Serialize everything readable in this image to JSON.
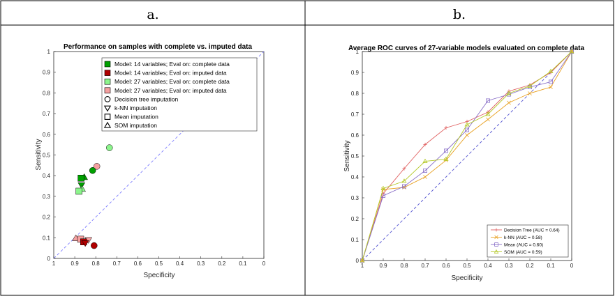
{
  "panels": [
    {
      "letter": "a."
    },
    {
      "letter": "b."
    }
  ],
  "chart_data": [
    {
      "type": "scatter",
      "title": "Performance on samples with complete vs. imputed data",
      "xlabel": "Specificity",
      "ylabel": "Sensitivity",
      "xlim": [
        1,
        0
      ],
      "ylim": [
        0,
        1
      ],
      "x_reversed": true,
      "grid": false,
      "ticks": [
        "0",
        "0.1",
        "0.2",
        "0.3",
        "0.4",
        "0.5",
        "0.6",
        "0.7",
        "0.8",
        "0.9",
        "1"
      ],
      "reference_line": "diagonal",
      "legend_position": "top-right",
      "colors": {
        "m14_complete": "#00a000",
        "m14_imputed": "#b00000",
        "m27_complete": "#8cf58c",
        "m27_imputed": "#f5a0a0",
        "diagonal": "#8080ff"
      },
      "legend": [
        {
          "label": "Model: 14 variables; Eval on: complete data",
          "color_key": "m14_complete",
          "marker": "square"
        },
        {
          "label": "Model: 14 variables; Eval on: imputed data",
          "color_key": "m14_imputed",
          "marker": "square"
        },
        {
          "label": "Model: 27 variables; Eval on: complete data",
          "color_key": "m27_complete",
          "marker": "square"
        },
        {
          "label": "Model: 27 variables; Eval on: imputed data",
          "color_key": "m27_imputed",
          "marker": "square"
        },
        {
          "label": "Decision tree imputation",
          "marker": "circle"
        },
        {
          "label": "k-NN imputation",
          "marker": "triangle-down"
        },
        {
          "label": "Mean imputation",
          "marker": "square"
        },
        {
          "label": "SOM imputation",
          "marker": "triangle-up"
        }
      ],
      "points": [
        {
          "group": "m27_complete",
          "marker": "circle",
          "x": 0.735,
          "y": 0.535
        },
        {
          "group": "m27_imputed",
          "marker": "circle",
          "x": 0.795,
          "y": 0.445
        },
        {
          "group": "m14_complete",
          "marker": "circle",
          "x": 0.815,
          "y": 0.425
        },
        {
          "group": "m14_complete",
          "marker": "triangle-up",
          "x": 0.855,
          "y": 0.392
        },
        {
          "group": "m14_complete",
          "marker": "square",
          "x": 0.87,
          "y": 0.388
        },
        {
          "group": "m14_complete",
          "marker": "triangle-down",
          "x": 0.868,
          "y": 0.355
        },
        {
          "group": "m27_complete",
          "marker": "triangle-up",
          "x": 0.865,
          "y": 0.335
        },
        {
          "group": "m27_complete",
          "marker": "square",
          "x": 0.88,
          "y": 0.325
        },
        {
          "group": "m27_imputed",
          "marker": "triangle-up",
          "x": 0.895,
          "y": 0.097
        },
        {
          "group": "m27_imputed",
          "marker": "square",
          "x": 0.872,
          "y": 0.093
        },
        {
          "group": "m27_imputed",
          "marker": "triangle-down",
          "x": 0.835,
          "y": 0.09
        },
        {
          "group": "m14_imputed",
          "marker": "square",
          "x": 0.858,
          "y": 0.08
        },
        {
          "group": "m14_imputed",
          "marker": "triangle-down",
          "x": 0.85,
          "y": 0.075
        },
        {
          "group": "m14_imputed",
          "marker": "circle",
          "x": 0.808,
          "y": 0.062
        }
      ]
    },
    {
      "type": "line",
      "title": "Average ROC curves of 27-variable models evaluated on complete data",
      "xlabel": "Specificity",
      "ylabel": "Sensitivity",
      "xlim": [
        1,
        0
      ],
      "ylim": [
        0,
        1
      ],
      "x_reversed": true,
      "grid": false,
      "ticks": [
        "0",
        "0.1",
        "0.2",
        "0.3",
        "0.4",
        "0.5",
        "0.6",
        "0.7",
        "0.8",
        "0.9",
        "1"
      ],
      "reference_line": "diagonal",
      "legend_position": "bottom-right",
      "x": [
        1,
        0.9,
        0.8,
        0.7,
        0.6,
        0.5,
        0.4,
        0.3,
        0.2,
        0.1,
        0
      ],
      "series": [
        {
          "name": "Decision Tree (AUC = 0.64)",
          "color": "#e06060",
          "marker": "plus",
          "values": [
            0,
            0.32,
            0.44,
            0.555,
            0.635,
            0.665,
            0.71,
            0.81,
            0.84,
            0.9,
            1
          ]
        },
        {
          "name": "k-NN (AUC = 0.58)",
          "color": "#e8a020",
          "marker": "x",
          "values": [
            0,
            0.34,
            0.35,
            0.4,
            0.48,
            0.6,
            0.675,
            0.755,
            0.8,
            0.83,
            1
          ]
        },
        {
          "name": "Mean (AUC = 0.60)",
          "color": "#8a70c8",
          "marker": "square",
          "values": [
            0,
            0.31,
            0.355,
            0.43,
            0.525,
            0.625,
            0.765,
            0.795,
            0.83,
            0.855,
            1
          ]
        },
        {
          "name": "SOM (AUC = 0.59)",
          "color": "#b4c828",
          "marker": "triangle-up",
          "values": [
            0,
            0.345,
            0.38,
            0.475,
            0.485,
            0.65,
            0.7,
            0.8,
            0.835,
            0.905,
            1
          ]
        }
      ],
      "colors": {
        "diagonal": "#5050d0"
      }
    }
  ]
}
